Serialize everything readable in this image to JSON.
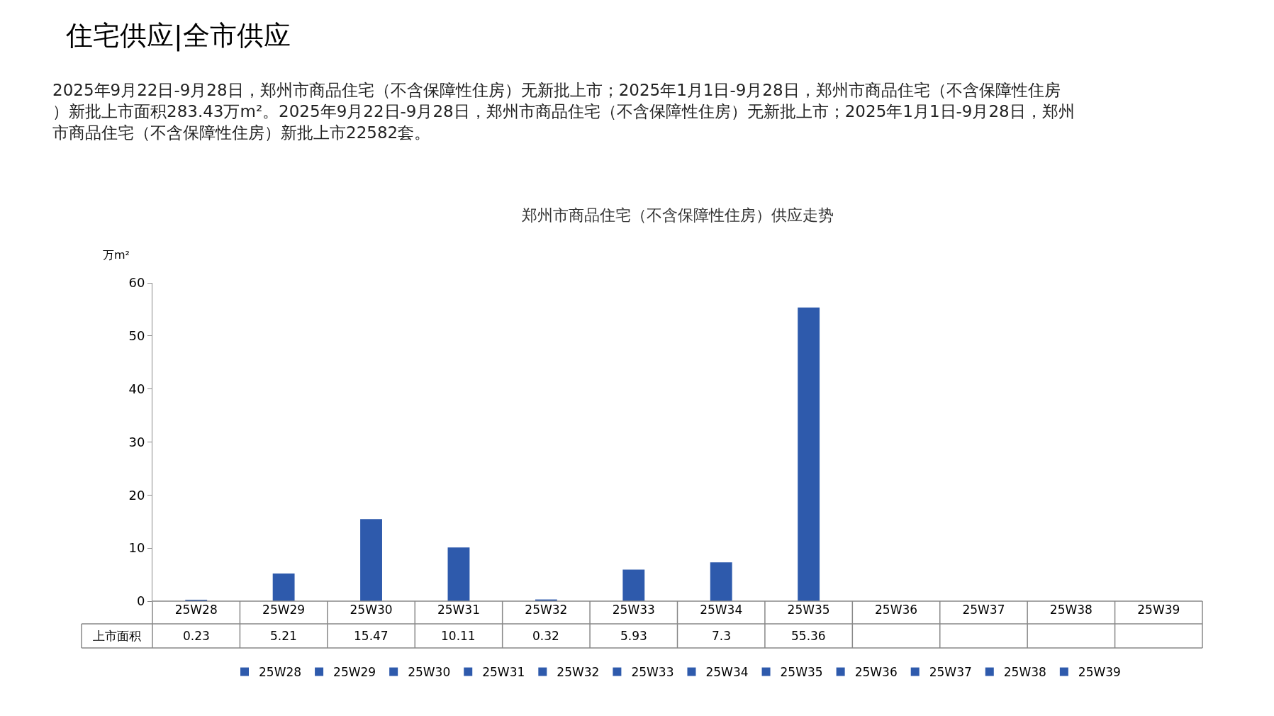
{
  "chart_data": {
    "type": "bar",
    "title": "郑州市商品住宅（不含保障性住房）供应走势",
    "annotations": [
      "住宅供应|全市供应",
      "2025年9月22日-9月28日，郑州市商品住宅（不含保障性住房）无新批上市；2025年1月1日-9月28日，郑州市商品住宅（不含保障性住房）新批上市面积283.43万m²。2025年9月22日-9月28日，郑州市商品住宅（不含保障性住房）无新批上市；2025年1月1日-9月28日，郑州市商品住宅（不含保障性住房）新批上市22582套。",
      "上市面积"
    ],
    "ylabel": "万m²",
    "categories": [
      "25W28",
      "25W29",
      "25W30",
      "25W31",
      "25W32",
      "25W33",
      "25W34",
      "25W35",
      "25W36",
      "25W37",
      "25W38",
      "25W39"
    ],
    "series": [
      {
        "name": "25W28",
        "color": "#2e5aac",
        "values": [
          0.23,
          null,
          null,
          null,
          null,
          null,
          null,
          null,
          null,
          null,
          null,
          null
        ]
      },
      {
        "name": "25W29",
        "color": "#2e5aac",
        "values": [
          null,
          5.21,
          null,
          null,
          null,
          null,
          null,
          null,
          null,
          null,
          null,
          null
        ]
      },
      {
        "name": "25W30",
        "color": "#2e5aac",
        "values": [
          null,
          null,
          15.47,
          null,
          null,
          null,
          null,
          null,
          null,
          null,
          null,
          null
        ]
      },
      {
        "name": "25W31",
        "color": "#2e5aac",
        "values": [
          null,
          null,
          null,
          10.11,
          null,
          null,
          null,
          null,
          null,
          null,
          null,
          null
        ]
      },
      {
        "name": "25W32",
        "color": "#2e5aac",
        "values": [
          null,
          null,
          null,
          null,
          0.32,
          null,
          null,
          null,
          null,
          null,
          null,
          null
        ]
      },
      {
        "name": "25W33",
        "color": "#2e5aac",
        "values": [
          null,
          null,
          null,
          null,
          null,
          5.93,
          null,
          null,
          null,
          null,
          null,
          null
        ]
      },
      {
        "name": "25W34",
        "color": "#2e5aac",
        "values": [
          null,
          null,
          null,
          null,
          null,
          null,
          7.3,
          null,
          null,
          null,
          null,
          null
        ]
      },
      {
        "name": "25W35",
        "color": "#2e5aac",
        "values": [
          null,
          null,
          null,
          null,
          null,
          null,
          null,
          55.36,
          null,
          null,
          null,
          null
        ]
      },
      {
        "name": "25W36",
        "color": "#2e5aac",
        "values": [
          null,
          null,
          null,
          null,
          null,
          null,
          null,
          null,
          null,
          null,
          null,
          null
        ]
      },
      {
        "name": "25W37",
        "color": "#2e5aac",
        "values": [
          null,
          null,
          null,
          null,
          null,
          null,
          null,
          null,
          null,
          null,
          null,
          null
        ]
      },
      {
        "name": "25W38",
        "color": "#2e5aac",
        "values": [
          null,
          null,
          null,
          null,
          null,
          null,
          null,
          null,
          null,
          null,
          null,
          null
        ]
      },
      {
        "name": "25W39",
        "color": "#2e5aac",
        "values": [
          null,
          null,
          null,
          null,
          null,
          null,
          null,
          null,
          null,
          null,
          null,
          null
        ]
      }
    ],
    "ylim": [
      0,
      60
    ],
    "yticks": [
      0,
      10,
      20,
      30,
      40,
      50,
      60
    ],
    "data_labels": true,
    "legend": "bottom"
  }
}
